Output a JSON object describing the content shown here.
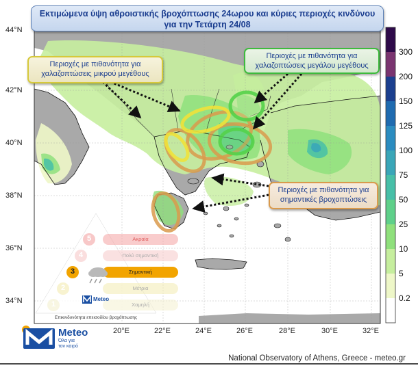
{
  "title": {
    "line1": "Εκτιμώμενα ύψη αθροιστικής βροχόπτωσης 24ωρου και κύριες περιοχές κινδύνου",
    "line2": "για την Τετάρτη 24/08"
  },
  "callouts": {
    "large_hail": {
      "line1": "Περιοχές με πιθανότητα για",
      "line2": "χαλαζοπτώσεις μεγάλου μεγέθους"
    },
    "small_hail": {
      "line1": "Περιοχές με πιθανότητα για",
      "line2": "χαλαζοπτώσεις μικρού μεγέθους"
    },
    "heavy_rain": {
      "line1": "Περιοχές με πιθανότητα για",
      "line2": "σημαντικές βροχοπτώσεις"
    }
  },
  "lat_labels": [
    "44°N",
    "42°N",
    "40°N",
    "38°N",
    "36°N",
    "34°N"
  ],
  "lon_labels": [
    "20°E",
    "22°E",
    "24°E",
    "26°E",
    "28°E",
    "30°E",
    "32°E"
  ],
  "colorbar": {
    "labels": [
      "300",
      "200",
      "150",
      "125",
      "100",
      "75",
      "50",
      "25",
      "10",
      "5",
      "0.2"
    ],
    "colors": [
      "#2e0a4a",
      "#7a3470",
      "#1b3f8f",
      "#1f6bb0",
      "#2b8cc0",
      "#3aa6b8",
      "#47bfa8",
      "#5fd08a",
      "#8fe07c",
      "#c6ee9e",
      "#eef7c8",
      "#ffffff"
    ]
  },
  "risk_pyramid": {
    "levels": [
      {
        "num": "5",
        "label": "Ακραία",
        "color": "#f4a3a3"
      },
      {
        "num": "4",
        "label": "Πολύ σημαντική",
        "color": "#f6c8c8"
      },
      {
        "num": "3",
        "label": "Σημαντική",
        "color": "#f2a400"
      },
      {
        "num": "2",
        "label": "Μέτρια",
        "color": "#f3ebb0"
      },
      {
        "num": "1",
        "label": "Χαμηλή",
        "color": "#f4f0cf"
      }
    ],
    "brand": "Meteo",
    "caption": "Επικινδυνότητα επεισοδίου βροχόπτωσης"
  },
  "logo": {
    "name": "Meteo",
    "tagline1": "Όλα για",
    "tagline2": "τον καιρό"
  },
  "footer": "National Observatory of Athens, Greece - meteo.gr"
}
